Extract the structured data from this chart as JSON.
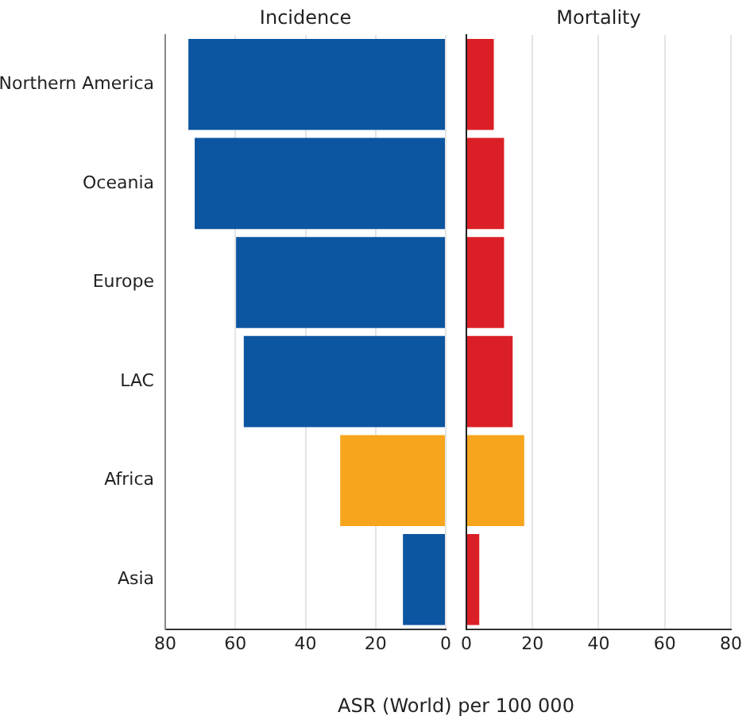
{
  "chart_data": [
    {
      "type": "bar",
      "orientation": "horizontal",
      "title": "Incidence",
      "categories": [
        "Northern America",
        "Oceania",
        "Europe",
        "LAC",
        "Africa",
        "Asia"
      ],
      "values": [
        73.4,
        71.6,
        59.8,
        57.6,
        30.1,
        12.2
      ],
      "colors": [
        "#0c55a1",
        "#0c55a1",
        "#0c55a1",
        "#0c55a1",
        "#f7a51d",
        "#0c55a1"
      ],
      "xlim": [
        80,
        0
      ],
      "xticks": [
        80,
        60,
        40,
        20,
        0
      ],
      "grid": "x"
    },
    {
      "type": "bar",
      "orientation": "horizontal",
      "title": "Mortality",
      "xlabel": "ASR (World) per 100 000",
      "categories": [
        null,
        null,
        null,
        null,
        null,
        null
      ],
      "values": [
        8.3,
        11.4,
        11.4,
        14.0,
        17.5,
        3.9
      ],
      "colors": [
        "#db1f26",
        "#db1f26",
        "#db1f26",
        "#db1f26",
        "#f7a51d",
        "#db1f26"
      ],
      "xlim": [
        0,
        80
      ],
      "xticks": [
        0,
        20,
        40,
        60,
        80
      ],
      "grid": "x",
      "tick_labels": "x"
    }
  ]
}
